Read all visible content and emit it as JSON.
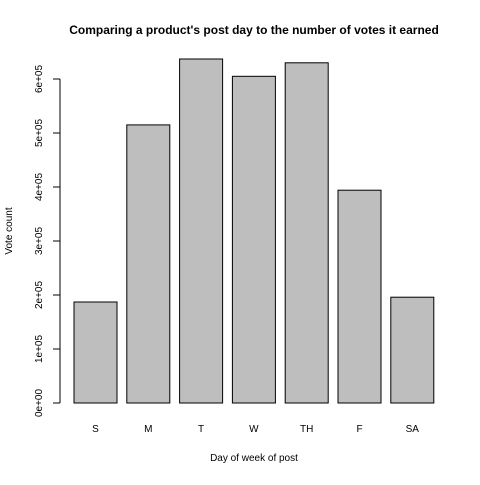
{
  "chart_data": {
    "type": "bar",
    "title": "Comparing a product's post day to the number of votes it earned",
    "xlabel": "Day of week of post",
    "ylabel": "Vote count",
    "categories": [
      "S",
      "M",
      "T",
      "W",
      "TH",
      "F",
      "SA"
    ],
    "values": [
      187000,
      515000,
      637000,
      605000,
      630000,
      394000,
      196000
    ],
    "ylim": [
      0,
      600000
    ],
    "yticks": [
      0,
      100000,
      200000,
      300000,
      400000,
      500000,
      600000
    ],
    "ytick_labels": [
      "0e+00",
      "1e+05",
      "2e+05",
      "3e+05",
      "4e+05",
      "5e+05",
      "6e+05"
    ],
    "bar_color": "#bebebe",
    "grid": false,
    "legend": "none"
  }
}
